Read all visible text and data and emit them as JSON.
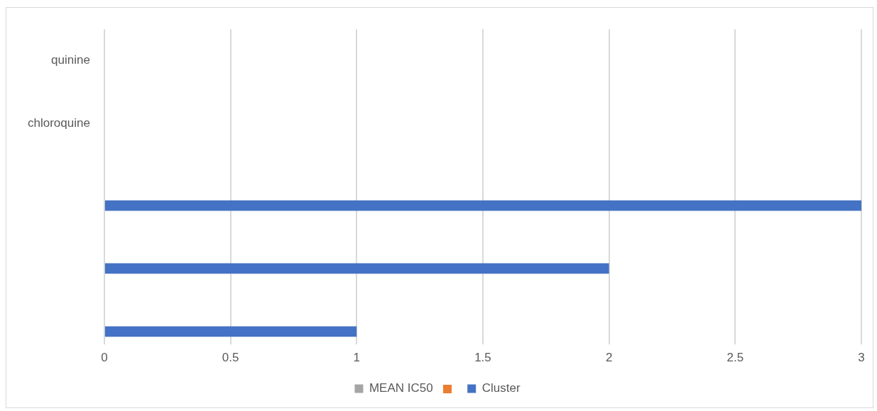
{
  "chart_data": {
    "type": "bar",
    "orientation": "horizontal",
    "categories": [
      "quinine",
      "chloroquine",
      null,
      null,
      null
    ],
    "series": [
      {
        "name": "MEAN IC50",
        "color": "#a5a5a5",
        "values": [
          null,
          null,
          null,
          null,
          null
        ]
      },
      {
        "color": "#ed7d31",
        "values": [
          null,
          null,
          null,
          null,
          null
        ]
      },
      {
        "name": "Cluster",
        "color": "#4472c4",
        "values": [
          null,
          null,
          3,
          2,
          1
        ]
      }
    ],
    "xlim": [
      0,
      3
    ],
    "xticks": [
      0,
      0.5,
      1,
      1.5,
      2,
      2.5,
      3
    ],
    "grid": "x",
    "legend": "bottom"
  }
}
